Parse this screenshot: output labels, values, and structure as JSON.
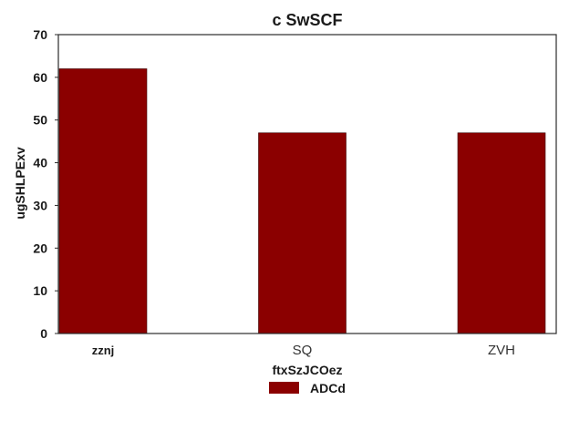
{
  "chart_data": {
    "type": "bar",
    "title": "c SwSCF",
    "xlabel": "ftxSzJCOez",
    "ylabel": "ugSHLPExv",
    "categories": [
      "zznj",
      "SQ",
      "ZVH"
    ],
    "series": [
      {
        "name": "ADCd",
        "values": [
          62,
          47,
          47
        ],
        "color": "#8b0000"
      }
    ],
    "ylim": [
      0,
      70
    ],
    "yticks": [
      0,
      10,
      20,
      30,
      40,
      50,
      60,
      70
    ],
    "grid": false,
    "legend_position": "bottom-center"
  }
}
